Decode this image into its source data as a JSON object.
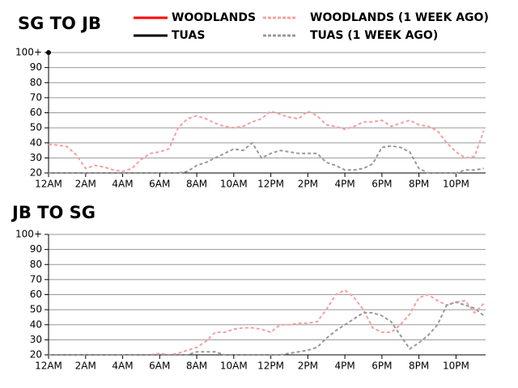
{
  "chart_data": [
    {
      "type": "line",
      "title": "SG TO JB",
      "x": [
        0,
        0.5,
        1,
        1.5,
        2,
        2.5,
        3,
        3.5,
        4,
        4.5,
        5,
        5.5,
        6,
        6.5,
        7,
        7.5,
        8,
        8.5,
        9,
        9.5,
        10,
        10.5,
        11,
        11.5,
        12,
        12.5,
        13,
        13.5,
        14,
        14.5,
        15,
        15.5,
        16,
        16.5,
        17,
        17.5,
        18,
        18.5,
        19,
        19.5,
        20,
        20.5,
        21,
        21.5,
        22,
        22.5,
        23,
        23.5
      ],
      "series": [
        {
          "name": "WOODLANDS",
          "color": "#ff0000",
          "dashed": false,
          "values": [
            null,
            null,
            null,
            null,
            null,
            null,
            null,
            null,
            null,
            null,
            null,
            null,
            null,
            null,
            null,
            null,
            null,
            null,
            null,
            null,
            null,
            null,
            null,
            null,
            null,
            null,
            null,
            null,
            null,
            null,
            null,
            null,
            null,
            null,
            null,
            null,
            null,
            null,
            null,
            null,
            null,
            null,
            null,
            null,
            null,
            null,
            null,
            null
          ]
        },
        {
          "name": "WOODLANDS (1 WEEK AGO)",
          "color": "#f4a0a0",
          "dashed": true,
          "values": [
            39,
            38.5,
            37.5,
            32,
            23,
            25,
            24,
            22,
            21,
            23,
            29,
            33,
            34,
            36,
            50,
            56,
            58,
            56,
            53,
            51,
            50,
            51,
            54,
            56,
            61,
            59,
            57,
            56,
            61,
            58,
            52,
            51,
            49,
            51,
            54,
            54,
            55,
            51,
            53,
            55,
            52,
            51,
            48,
            40,
            34,
            30,
            31,
            48
          ]
        },
        {
          "name": "TUAS",
          "color": "#000000",
          "dashed": false,
          "values": [
            100,
            null,
            null,
            null,
            null,
            null,
            null,
            null,
            null,
            null,
            null,
            null,
            null,
            null,
            null,
            null,
            null,
            null,
            null,
            null,
            null,
            null,
            null,
            null,
            null,
            null,
            null,
            null,
            null,
            null,
            null,
            null,
            null,
            null,
            null,
            null,
            null,
            null,
            null,
            null,
            null,
            null,
            null,
            null,
            null,
            null,
            null,
            null
          ]
        },
        {
          "name": "TUAS (1 WEEK AGO)",
          "color": "#999999",
          "dashed": true,
          "values": [
            20,
            20,
            20,
            20,
            20,
            20,
            20,
            20,
            20,
            20,
            20,
            20,
            20,
            20,
            20,
            21,
            25,
            27,
            30,
            33,
            36,
            35,
            40,
            30,
            33,
            35,
            34,
            33,
            33,
            33,
            27,
            25,
            22,
            22,
            23,
            26,
            37,
            38,
            37,
            34,
            23,
            20,
            20,
            20,
            20,
            22,
            22,
            23
          ]
        }
      ],
      "xlim": [
        0,
        23.6
      ],
      "xticks": [
        {
          "value": 0,
          "label": "12AM"
        },
        {
          "value": 2,
          "label": "2AM"
        },
        {
          "value": 4,
          "label": "4AM"
        },
        {
          "value": 6,
          "label": "6AM"
        },
        {
          "value": 8,
          "label": "8AM"
        },
        {
          "value": 10,
          "label": "10AM"
        },
        {
          "value": 12,
          "label": "12PM"
        },
        {
          "value": 14,
          "label": "2PM"
        },
        {
          "value": 16,
          "label": "4PM"
        },
        {
          "value": 18,
          "label": "6PM"
        },
        {
          "value": 20,
          "label": "8PM"
        },
        {
          "value": 22,
          "label": "10PM"
        }
      ],
      "ylim": [
        20,
        100
      ],
      "yticks": [
        20,
        30,
        40,
        50,
        60,
        70,
        80,
        90,
        {
          "value": 100,
          "label": "100+"
        }
      ],
      "grid": true
    },
    {
      "type": "line",
      "title": "JB TO SG",
      "x": [
        0,
        0.5,
        1,
        1.5,
        2,
        2.5,
        3,
        3.5,
        4,
        4.5,
        5,
        5.5,
        6,
        6.5,
        7,
        7.5,
        8,
        8.5,
        9,
        9.5,
        10,
        10.5,
        11,
        11.5,
        12,
        12.5,
        13,
        13.5,
        14,
        14.5,
        15,
        15.5,
        16,
        16.5,
        17,
        17.5,
        18,
        18.5,
        19,
        19.5,
        20,
        20.5,
        21,
        21.5,
        22,
        22.5,
        23,
        23.5
      ],
      "series": [
        {
          "color": "#f4a0a0",
          "dashed": true,
          "values": [
            20,
            20,
            20,
            20,
            20,
            20,
            20,
            20,
            20,
            20,
            20,
            20,
            21,
            20,
            21,
            23,
            25,
            29,
            35,
            35,
            37,
            38,
            38,
            37,
            35,
            40,
            40,
            41,
            41,
            42,
            50,
            60,
            63,
            58,
            50,
            38,
            35,
            35,
            40,
            47,
            58,
            60,
            56,
            53,
            55,
            56,
            48,
            54
          ]
        },
        {
          "color": "#999999",
          "dashed": true,
          "values": [
            20,
            20,
            20,
            20,
            20,
            20,
            20,
            20,
            20,
            20,
            20,
            20,
            20,
            20,
            20,
            20,
            22,
            22,
            22,
            20,
            20,
            20,
            20,
            20,
            20,
            20,
            21,
            22,
            23,
            25,
            31,
            36,
            40,
            44,
            48,
            48,
            46,
            42,
            33,
            24,
            28,
            33,
            40,
            53,
            55,
            53,
            51,
            46
          ]
        }
      ],
      "xlim": [
        0,
        23.6
      ],
      "xticks": [
        {
          "value": 0,
          "label": "12AM"
        },
        {
          "value": 2,
          "label": "2AM"
        },
        {
          "value": 4,
          "label": "4AM"
        },
        {
          "value": 6,
          "label": "6AM"
        },
        {
          "value": 8,
          "label": "8AM"
        },
        {
          "value": 10,
          "label": "10AM"
        },
        {
          "value": 12,
          "label": "12PM"
        },
        {
          "value": 14,
          "label": "2PM"
        },
        {
          "value": 16,
          "label": "4PM"
        },
        {
          "value": 18,
          "label": "6PM"
        },
        {
          "value": 20,
          "label": "8PM"
        },
        {
          "value": 22,
          "label": "10PM"
        }
      ],
      "ylim": [
        20,
        100
      ],
      "yticks": [
        20,
        30,
        40,
        50,
        60,
        70,
        80,
        90,
        {
          "value": 100,
          "label": "100+"
        }
      ],
      "grid": true
    }
  ]
}
